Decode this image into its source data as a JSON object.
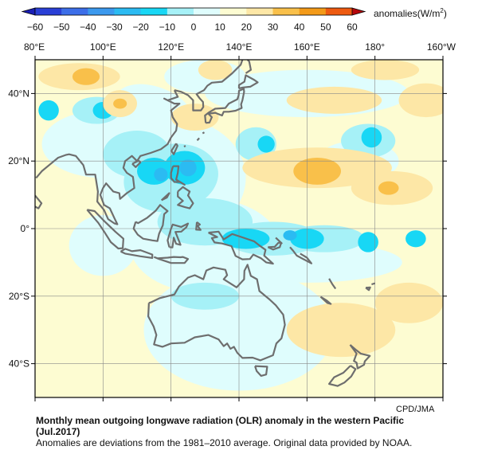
{
  "legend": {
    "unit_label": "anomalies(W/m",
    "unit_superscript": "2",
    "unit_close": ")",
    "levels": [
      -60,
      -50,
      -40,
      -30,
      -20,
      -10,
      0,
      10,
      20,
      30,
      40,
      50,
      60
    ],
    "colors": [
      "#2a3fd6",
      "#3c6ee8",
      "#3b99ee",
      "#2bbbf2",
      "#18d7f5",
      "#a6f1f7",
      "#dffdfd",
      "#fdfcd2",
      "#fde7a6",
      "#f9c04a",
      "#f39a18",
      "#ee5a10",
      "#e0211a",
      "#c00e0e"
    ],
    "below_color": "#1a1fb5",
    "above_color": "#b5070b"
  },
  "map": {
    "lon_labels": [
      "80°E",
      "100°E",
      "120°E",
      "140°E",
      "160°E",
      "180°",
      "160°W"
    ],
    "lat_labels": [
      "40°N",
      "20°N",
      "0°",
      "20°S",
      "40°S"
    ],
    "lon_range": [
      80,
      200
    ],
    "lat_range": [
      -50,
      50
    ],
    "grid_step_lon": 20,
    "grid_step_lat": 20
  },
  "credit": "CPD/JMA",
  "caption": {
    "title": "Monthly mean outgoing longwave radiation (OLR) anomaly in the western Pacific (Jul.2017)",
    "note": "Anomalies are deviations from the 1981–2010 average. Original data provided by NOAA."
  }
}
